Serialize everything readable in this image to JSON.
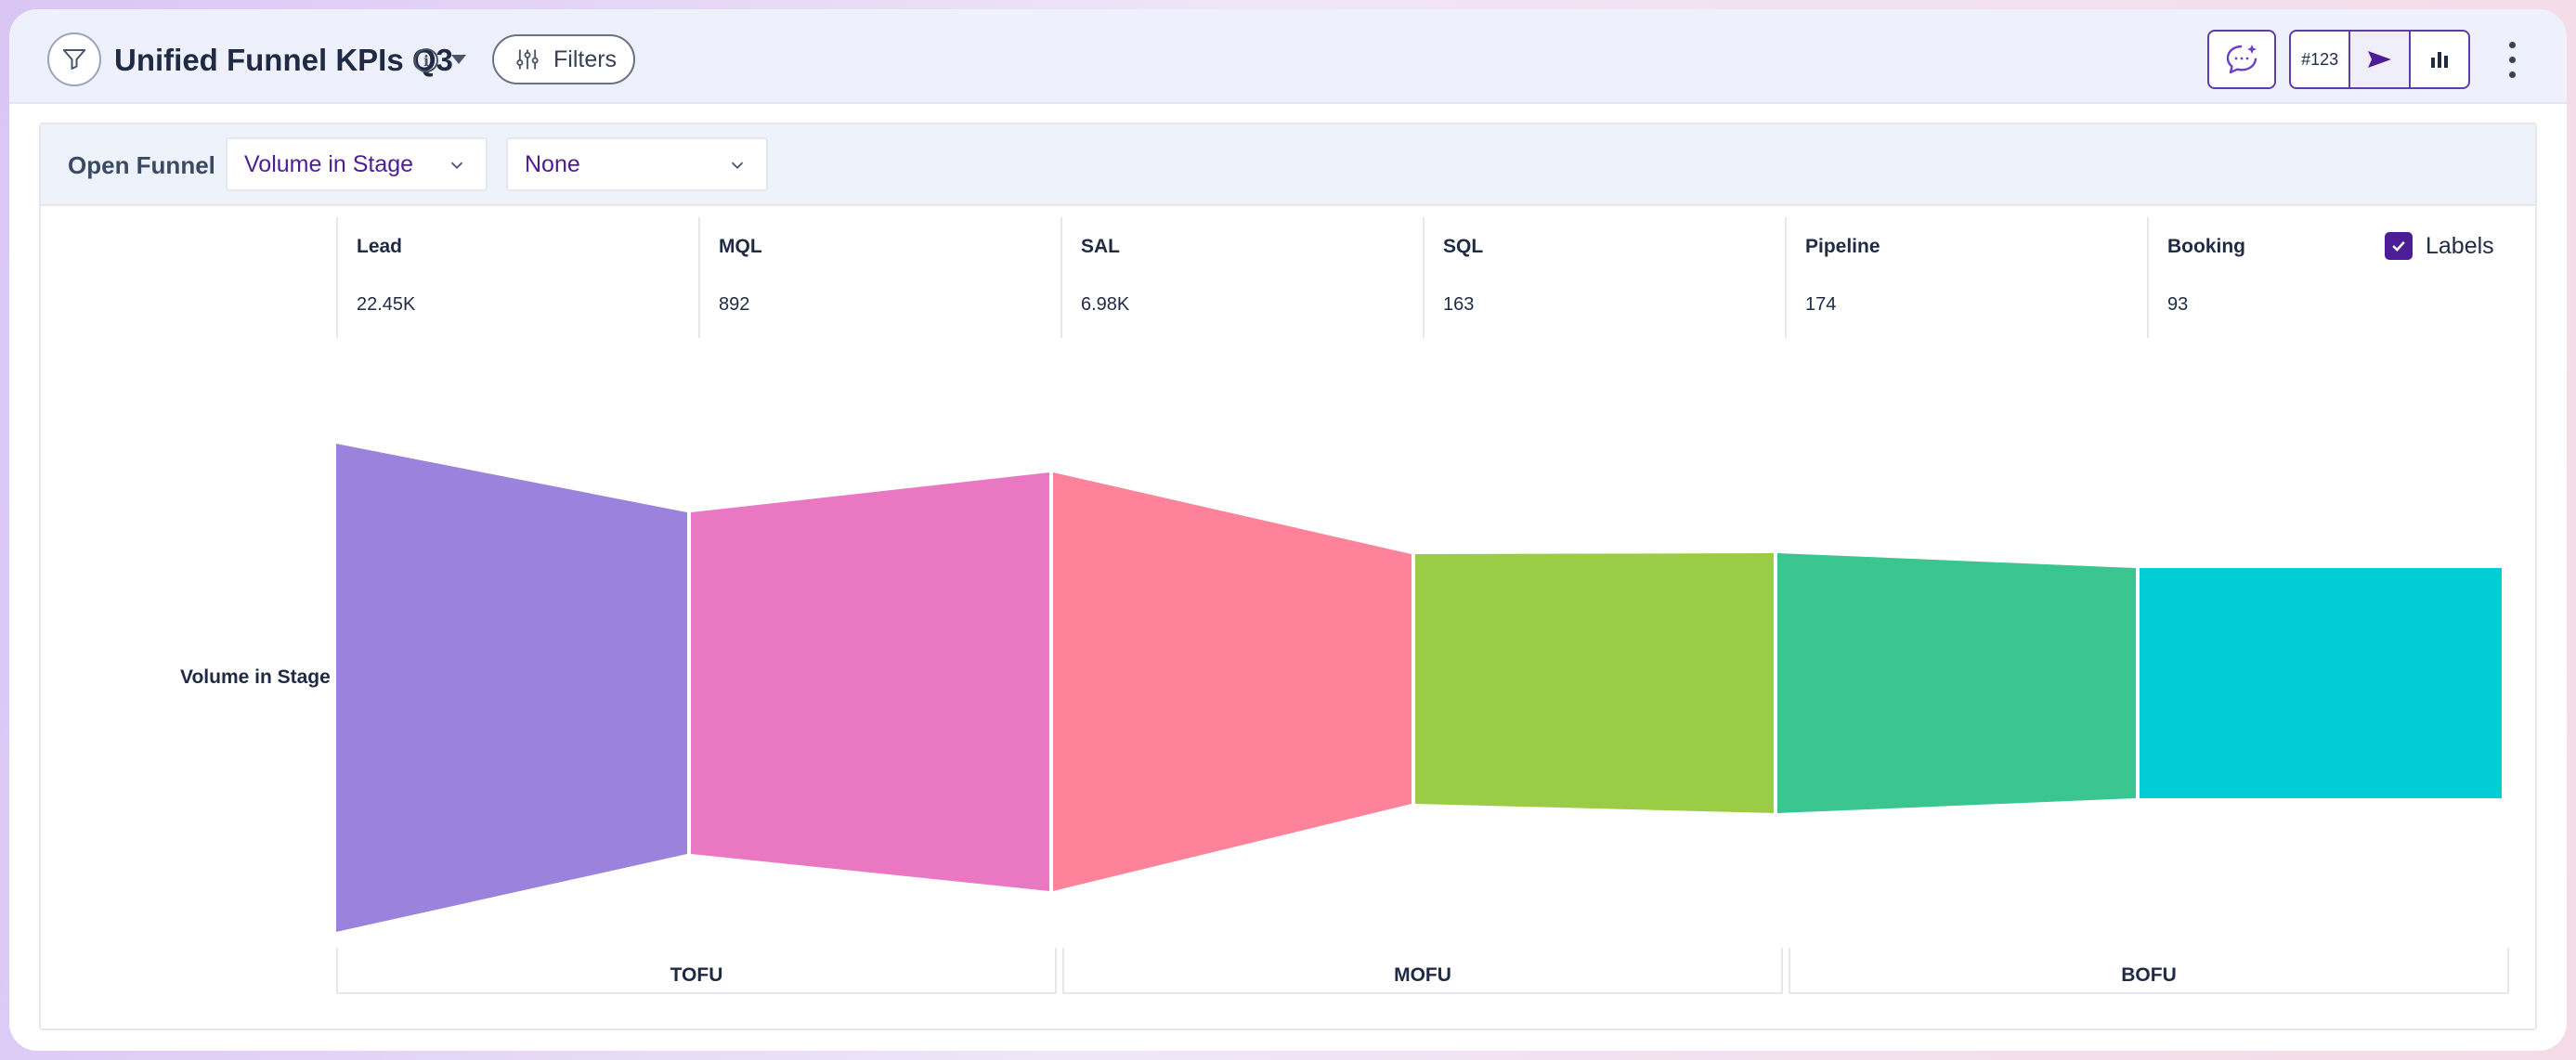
{
  "header": {
    "title": "Unified Funnel KPIs Q3",
    "filters_label": "Filters",
    "viz_buttons": [
      "#123",
      "send-icon",
      "bar-chart-icon"
    ],
    "accent_color": "#5b3ea8"
  },
  "toolbar": {
    "view_label": "Open Funnel",
    "metric_select": "Volume in Stage",
    "group_select": "None"
  },
  "labels_toggle": {
    "label": "Labels",
    "checked": true
  },
  "chart_data": {
    "type": "funnel",
    "row_label": "Volume in Stage",
    "stages": [
      {
        "name": "Lead",
        "value_label": "22.45K",
        "color": "#9b82dc"
      },
      {
        "name": "MQL",
        "value_label": "892",
        "color": "#e977c1"
      },
      {
        "name": "SAL",
        "value_label": "6.98K",
        "color": "#fe8299"
      },
      {
        "name": "SQL",
        "value_label": "163",
        "color": "#9acd45"
      },
      {
        "name": "Pipeline",
        "value_label": "174",
        "color": "#3bc591"
      },
      {
        "name": "Booking",
        "value_label": "93",
        "color": "#00cdd5"
      }
    ],
    "groups": [
      "TOFU",
      "MOFU",
      "BOFU"
    ]
  }
}
